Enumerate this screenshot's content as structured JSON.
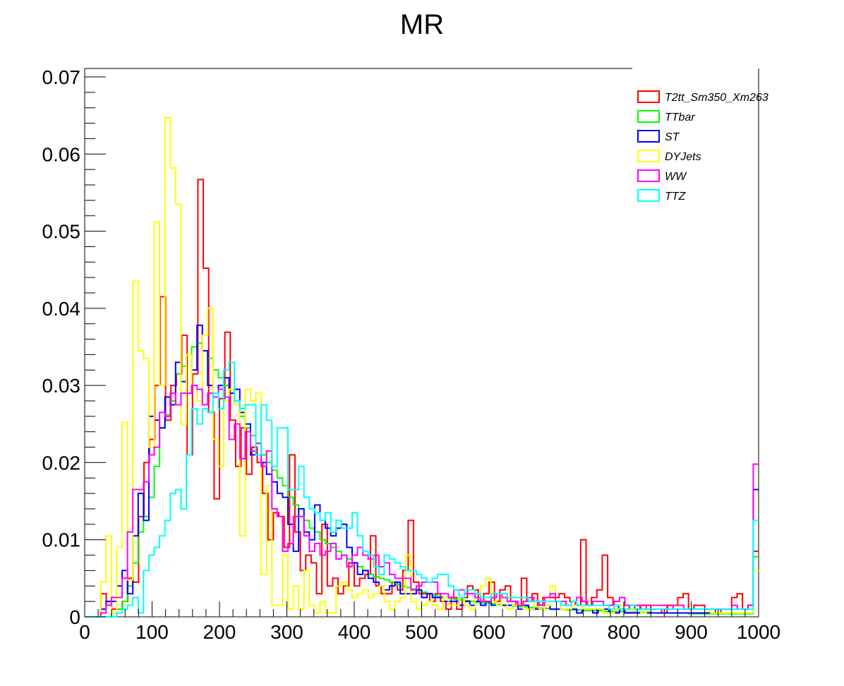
{
  "chart_data": {
    "type": "line",
    "title": "MR",
    "xlabel": "",
    "ylabel": "",
    "xlim": [
      0,
      1000
    ],
    "ylim": [
      0,
      0.0711
    ],
    "grid": false,
    "legend_position": "top-right",
    "xticks": [
      "0",
      "100",
      "200",
      "300",
      "400",
      "500",
      "600",
      "700",
      "800",
      "900",
      "1000"
    ],
    "yticks": [
      "0",
      "0.01",
      "0.02",
      "0.03",
      "0.04",
      "0.05",
      "0.06",
      "0.07"
    ],
    "series": [
      {
        "name": "T2tt_Sm350_Xm263",
        "color": "#ff0000",
        "values": [
          0,
          0,
          0,
          0.003,
          0.002,
          0.001,
          0.001,
          0.002,
          0.005,
          0.0045,
          0.013,
          0.02,
          0.023,
          0.03,
          0.0415,
          0.0255,
          0.03,
          0.0315,
          0.0365,
          0.021,
          0.0315,
          0.0567,
          0.0452,
          0.0265,
          0.0153,
          0.0283,
          0.0369,
          0.0255,
          0.0195,
          0.0245,
          0.0185,
          0.022,
          0.02,
          0.016,
          0.01,
          0.0135,
          0.013,
          0.009,
          0.021,
          0.011,
          0.006,
          0.008,
          0.007,
          0.003,
          0.012,
          0.004,
          0.005,
          0.003,
          0.004,
          0.007,
          0.004,
          0.005,
          0.0055,
          0.0105,
          0.004,
          0.003,
          0.003,
          0.0045,
          0.0035,
          0.006,
          0.0125,
          0.0045,
          0.003,
          0.003,
          0.002,
          0.003,
          0.002,
          0.001,
          0.0025,
          0.001,
          0.0025,
          0.004,
          0.0035,
          0.002,
          0.003,
          0.0045,
          0.002,
          0.0035,
          0.004,
          0.002,
          0.0015,
          0.005,
          0.002,
          0.003,
          0.0015,
          0.0025,
          0.0025,
          0.0025,
          0.003,
          0.0025,
          0.002,
          0.0015,
          0.01,
          0.0015,
          0.0025,
          0.0035,
          0.008,
          0.0025,
          0.0015,
          0.001,
          0.001,
          0.0015,
          0.001,
          0.0015,
          0.0015,
          0.001,
          0.001,
          0.0005,
          0.0015,
          0.0015,
          0.0025,
          0.003,
          0.001,
          0.0015,
          0.0015,
          0.001,
          0.001,
          0.0005,
          0.001,
          0.001,
          0.0025,
          0.003,
          0.001,
          0.0015,
          0.0085
        ]
      },
      {
        "name": "TTbar",
        "color": "#00ff00",
        "values": [
          0,
          0,
          0,
          0,
          0,
          0.0005,
          0.001,
          0.002,
          0.004,
          0.007,
          0.011,
          0.013,
          0.0155,
          0.0195,
          0.0245,
          0.0262,
          0.028,
          0.0315,
          0.0325,
          0.034,
          0.035,
          0.0355,
          0.0345,
          0.0335,
          0.032,
          0.031,
          0.03,
          0.029,
          0.0275,
          0.026,
          0.0245,
          0.0235,
          0.0225,
          0.021,
          0.02,
          0.019,
          0.018,
          0.017,
          0.0155,
          0.0145,
          0.013,
          0.0125,
          0.0115,
          0.011,
          0.01,
          0.0095,
          0.009,
          0.0085,
          0.008,
          0.0075,
          0.007,
          0.0065,
          0.006,
          0.0055,
          0.0052,
          0.005,
          0.0048,
          0.0045,
          0.0042,
          0.004,
          0.0038,
          0.0036,
          0.0034,
          0.0032,
          0.003,
          0.0028,
          0.0026,
          0.0025,
          0.0024,
          0.0023,
          0.0022,
          0.0021,
          0.002,
          0.0019,
          0.0018,
          0.0018,
          0.0017,
          0.0016,
          0.0015,
          0.0015,
          0.0014,
          0.0013,
          0.0013,
          0.0012,
          0.0012,
          0.0011,
          0.0011,
          0.001,
          0.001,
          0.001,
          0.0009,
          0.0009,
          0.0009,
          0.0008,
          0.0008,
          0.0008,
          0.0008,
          0.0007,
          0.0007,
          0.0007,
          0.0007,
          0.0006,
          0.0006,
          0.0006,
          0.0006,
          0.0006,
          0.0005,
          0.0005,
          0.0005,
          0.0005,
          0.0005,
          0.0005,
          0.0005,
          0.0004,
          0.0004,
          0.0004,
          0.0004,
          0.0004,
          0.0004,
          0.0004,
          0.0004,
          0.0004,
          0.0004,
          0.0004,
          0.0004,
          0.0078
        ]
      },
      {
        "name": "ST",
        "color": "#0000ff",
        "values": [
          0,
          0,
          0,
          0.001,
          0.002,
          0.002,
          0.004,
          0.006,
          0.003,
          0.0105,
          0.016,
          0.0125,
          0.026,
          0.0255,
          0.0245,
          0.0285,
          0.0275,
          0.033,
          0.0305,
          0.034,
          0.032,
          0.0378,
          0.0345,
          0.03,
          0.0285,
          0.03,
          0.031,
          0.029,
          0.0295,
          0.0265,
          0.025,
          0.021,
          0.0225,
          0.02,
          0.0185,
          0.0175,
          0.016,
          0.0155,
          0.012,
          0.0085,
          0.014,
          0.011,
          0.01,
          0.0145,
          0.0125,
          0.0115,
          0.0105,
          0.0115,
          0.012,
          0.009,
          0.007,
          0.0055,
          0.006,
          0.005,
          0.0045,
          0.004,
          0.0035,
          0.004,
          0.0045,
          0.003,
          0.003,
          0.003,
          0.0035,
          0.0025,
          0.003,
          0.0025,
          0.0025,
          0.002,
          0.002,
          0.002,
          0.0015,
          0.002,
          0.0015,
          0.002,
          0.0015,
          0.002,
          0.0015,
          0.0015,
          0.0015,
          0.0015,
          0.0015,
          0.001,
          0.0015,
          0.001,
          0.001,
          0.001,
          0.0015,
          0.001,
          0.001,
          0.001,
          0.001,
          0.001,
          0.0005,
          0.001,
          0.001,
          0.0005,
          0.001,
          0.001,
          0.0005,
          0.0005,
          0.001,
          0.0005,
          0.0005,
          0.0005,
          0.0005,
          0.0005,
          0.0005,
          0.0005,
          0.0005,
          0.0005,
          0.0005,
          0.0005,
          0.0005,
          0.0005,
          0.0005,
          0.0005,
          0.0005,
          0.0005,
          0.0005,
          0.0005,
          0.0005,
          0.0005,
          0.0005,
          0.0005,
          0.0005,
          0.0165
        ]
      },
      {
        "name": "DYJets",
        "color": "#ffff00",
        "values": [
          0,
          0,
          0,
          0.0045,
          0.0105,
          0.0005,
          0.009,
          0.0252,
          0.0048,
          0.0435,
          0.0345,
          0.0335,
          0.022,
          0.0512,
          0.03,
          0.0647,
          0.0582,
          0.0535,
          0.025,
          0.034,
          0.03,
          0.028,
          0.0365,
          0.04,
          0.023,
          0.0195,
          0.028,
          0.0295,
          0.0275,
          0.0105,
          0.0295,
          0.028,
          0.029,
          0.0055,
          0.017,
          0.0015,
          0.0015,
          0.008,
          0.001,
          0.004,
          0.001,
          0.006,
          0.0015,
          0.0005,
          0.002,
          0.0005,
          0.0005,
          0.004,
          0.0045,
          0.0035,
          0.0025,
          0.003,
          0.0035,
          0.0025,
          0.003,
          0.004,
          0.002,
          0.001,
          0.002,
          0.0025,
          0.008,
          0.002,
          0.001,
          0.0015,
          0.002,
          0.0015,
          0.001,
          0.0025,
          0.0015,
          0.0015,
          0.0025,
          0.0015,
          0.001,
          0.0025,
          0.004,
          0.005,
          0.002,
          0.0015,
          0.0025,
          0.001,
          0.0015,
          0.0015,
          0.001,
          0.001,
          0.002,
          0.001,
          0.0015,
          0.004,
          0.002,
          0.001,
          0.001,
          0.0015,
          0.0015,
          0.001,
          0.001,
          0.001,
          0.001,
          0.0005,
          0.0005,
          0.001,
          0.0015,
          0.001,
          0.001,
          0.0015,
          0.0005,
          0.001,
          0.001,
          0.001,
          0.001,
          0.001,
          0.0015,
          0.001,
          0.001,
          0.001,
          0.001,
          0.001,
          0.001,
          0.0005,
          0.0005,
          0.0005,
          0.0005,
          0.0005,
          0.0005,
          0.0005,
          0.0005,
          0.006
        ]
      },
      {
        "name": "WW",
        "color": "#ff00ff",
        "values": [
          0,
          0,
          0,
          0.0005,
          0.0015,
          0.0025,
          0.0025,
          0.005,
          0.011,
          0.0165,
          0.0165,
          0.0175,
          0.021,
          0.022,
          0.0265,
          0.026,
          0.029,
          0.0275,
          0.029,
          0.029,
          0.03,
          0.0295,
          0.0275,
          0.029,
          0.0285,
          0.0295,
          0.0285,
          0.023,
          0.025,
          0.0205,
          0.024,
          0.0215,
          0.0225,
          0.0195,
          0.0215,
          0.014,
          0.013,
          0.0085,
          0.0095,
          0.013,
          0.013,
          0.0105,
          0.0085,
          0.0095,
          0.008,
          0.0085,
          0.0095,
          0.0075,
          0.008,
          0.0065,
          0.008,
          0.009,
          0.008,
          0.0075,
          0.008,
          0.0065,
          0.007,
          0.0055,
          0.005,
          0.005,
          0.005,
          0.0035,
          0.004,
          0.0045,
          0.0045,
          0.0045,
          0.003,
          0.003,
          0.0025,
          0.0035,
          0.0035,
          0.003,
          0.003,
          0.0025,
          0.002,
          0.002,
          0.0025,
          0.003,
          0.0025,
          0.002,
          0.002,
          0.0015,
          0.002,
          0.0025,
          0.002,
          0.0015,
          0.0025,
          0.003,
          0.002,
          0.002,
          0.0015,
          0.002,
          0.0025,
          0.002,
          0.0015,
          0.002,
          0.002,
          0.0015,
          0.0015,
          0.002,
          0.0025,
          0.0015,
          0.0015,
          0.0015,
          0.001,
          0.0015,
          0.0015,
          0.0015,
          0.0015,
          0.001,
          0.0015,
          0.0015,
          0.001,
          0.001,
          0.001,
          0.001,
          0.001,
          0.001,
          0.001,
          0.001,
          0.001,
          0.0015,
          0.001,
          0.001,
          0.0015,
          0.0198
        ]
      },
      {
        "name": "TTZ",
        "color": "#00ffff",
        "values": [
          0,
          0,
          0,
          0,
          0,
          0,
          0.0005,
          0.001,
          0.0015,
          0.0025,
          0.0005,
          0.006,
          0.008,
          0.009,
          0.0105,
          0.0125,
          0.016,
          0.0165,
          0.014,
          0.021,
          0.027,
          0.025,
          0.027,
          0.0265,
          0.029,
          0.027,
          0.032,
          0.033,
          0.028,
          0.027,
          0.0275,
          0.0275,
          0.021,
          0.0275,
          0.0255,
          0.0195,
          0.0245,
          0.0245,
          0.0165,
          0.0165,
          0.0195,
          0.0155,
          0.014,
          0.0135,
          0.0125,
          0.0135,
          0.011,
          0.0125,
          0.0115,
          0.0115,
          0.0135,
          0.0105,
          0.0085,
          0.008,
          0.0065,
          0.0055,
          0.008,
          0.0075,
          0.007,
          0.0065,
          0.006,
          0.006,
          0.0055,
          0.005,
          0.0045,
          0.005,
          0.0055,
          0.0055,
          0.004,
          0.0035,
          0.0025,
          0.0035,
          0.0035,
          0.003,
          0.0025,
          0.0025,
          0.003,
          0.003,
          0.003,
          0.0025,
          0.0025,
          0.0025,
          0.0025,
          0.002,
          0.002,
          0.002,
          0.002,
          0.002,
          0.002,
          0.0015,
          0.0015,
          0.002,
          0.0015,
          0.0015,
          0.0015,
          0.0015,
          0.0015,
          0.0015,
          0.001,
          0.0015,
          0.001,
          0.001,
          0.0015,
          0.001,
          0.001,
          0.001,
          0.001,
          0.001,
          0.001,
          0.001,
          0.001,
          0.001,
          0.001,
          0.001,
          0.001,
          0.001,
          0.001,
          0.001,
          0.001,
          0.001,
          0.001,
          0.001,
          0.001,
          0.001,
          0.001,
          0.0125
        ]
      }
    ]
  }
}
